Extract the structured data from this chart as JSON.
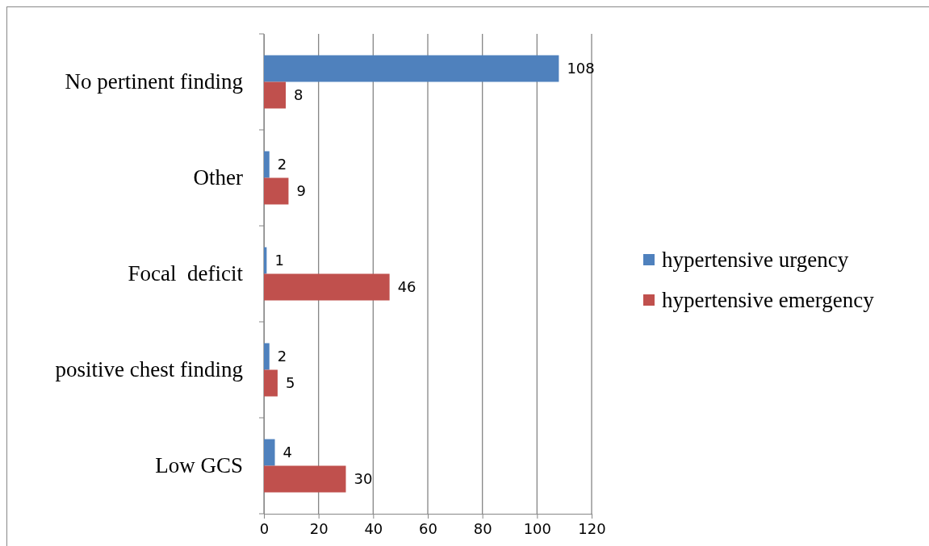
{
  "chart_data": {
    "type": "bar",
    "orientation": "horizontal",
    "categories": [
      "No pertinent finding",
      "Other",
      "Focal  deficit",
      "positive chest finding",
      "Low GCS"
    ],
    "series": [
      {
        "name": "hypertensive urgency",
        "color": "#4f81bd",
        "values": [
          108,
          2,
          1,
          2,
          4
        ]
      },
      {
        "name": "hypertensive emergency",
        "color": "#c0504d",
        "values": [
          8,
          9,
          46,
          5,
          30
        ]
      }
    ],
    "xlim": [
      0,
      120
    ],
    "xticks": [
      0,
      20,
      40,
      60,
      80,
      100,
      120
    ],
    "grid": "x",
    "legend": "right",
    "data_labels": true
  }
}
